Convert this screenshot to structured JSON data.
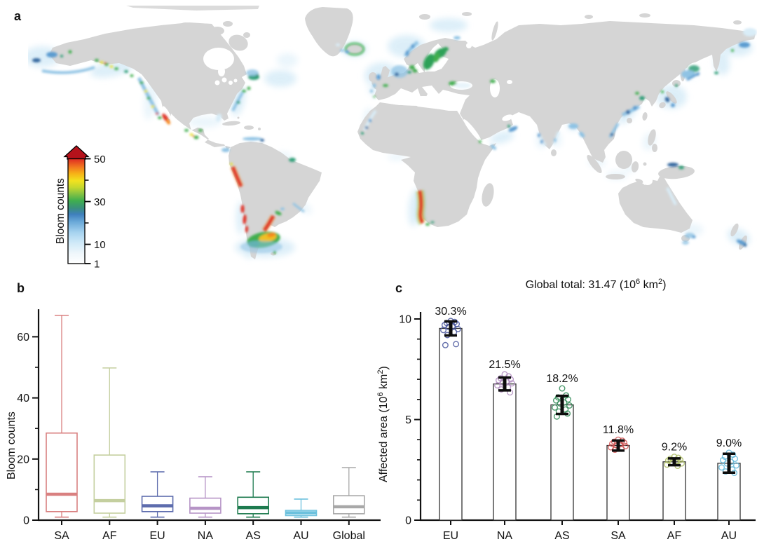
{
  "panels": {
    "a": {
      "label": "a"
    },
    "b": {
      "label": "b"
    },
    "c": {
      "label": "c"
    }
  },
  "map": {
    "land_color": "#d5d5d5",
    "ocean_color": "#ffffff",
    "bloom_palette": [
      "#e8f4fb",
      "#d9edf8",
      "#8fc3e4",
      "#5b9bd0",
      "#35689f",
      "#2f9e77",
      "#3fae4e",
      "#1e7b4f",
      "#e8e337",
      "#f0c020",
      "#f6871f",
      "#e03127"
    ],
    "colorbar": {
      "label": "Bloom counts",
      "min": 1,
      "max": 50,
      "major_ticks": [
        50,
        30,
        10,
        1
      ],
      "minor_ticks": [
        40,
        20
      ],
      "arrow_color": "#b5121b",
      "stops": [
        [
          0,
          "#ffffff"
        ],
        [
          0.1,
          "#eef6fb"
        ],
        [
          0.2,
          "#cfe9f8"
        ],
        [
          0.3,
          "#a5d2ef"
        ],
        [
          0.4,
          "#69a8d8"
        ],
        [
          0.47,
          "#3f7fbd"
        ],
        [
          0.53,
          "#39907c"
        ],
        [
          0.6,
          "#3fae4e"
        ],
        [
          0.67,
          "#8ac441"
        ],
        [
          0.73,
          "#c8d92c"
        ],
        [
          0.79,
          "#f2e21f"
        ],
        [
          0.86,
          "#f6b117"
        ],
        [
          0.92,
          "#f2791f"
        ],
        [
          1,
          "#de2a22"
        ]
      ]
    }
  },
  "chart_data": [
    {
      "type": "box",
      "panel": "b",
      "ylabel": "Bloom counts",
      "ylim": [
        0,
        70
      ],
      "yticks_major": [
        0,
        20,
        40,
        60
      ],
      "yticks_minor": [
        10,
        30,
        50
      ],
      "categories": [
        "SA",
        "AF",
        "EU",
        "NA",
        "AS",
        "AU",
        "Global"
      ],
      "series": [
        {
          "name": "SA",
          "color": "#d98080",
          "low": 1,
          "q1": 2.8,
          "median": 8.5,
          "q3": 28.5,
          "high": 67
        },
        {
          "name": "AF",
          "color": "#c4cf9f",
          "low": 1,
          "q1": 2.3,
          "median": 6.4,
          "q3": 21.3,
          "high": 49.8
        },
        {
          "name": "EU",
          "color": "#5d6cad",
          "low": 1,
          "q1": 2.8,
          "median": 4.7,
          "q3": 7.8,
          "high": 15.8
        },
        {
          "name": "NA",
          "color": "#b694c6",
          "low": 1,
          "q1": 2.3,
          "median": 3.9,
          "q3": 7.2,
          "high": 14.2
        },
        {
          "name": "AS",
          "color": "#1e7b4f",
          "low": 1,
          "q1": 2.1,
          "median": 4.1,
          "q3": 7.5,
          "high": 15.8
        },
        {
          "name": "AU",
          "color": "#6cc1dd",
          "low": 1,
          "q1": 1.5,
          "median": 2.4,
          "q3": 3.2,
          "high": 6.9
        },
        {
          "name": "Global",
          "color": "#a8a8a8",
          "low": 1,
          "q1": 2.1,
          "median": 4.4,
          "q3": 8.0,
          "high": 17.2
        }
      ]
    },
    {
      "type": "bar",
      "panel": "c",
      "global_total": "31.47",
      "title_parts": {
        "t1": "Global total: 31.47 (10",
        "sup1": "6",
        "t2": " km",
        "sup2": "2",
        "t3": ")"
      },
      "ylabel_parts": {
        "t1": "Affected area (10",
        "sup1": "6",
        "t2": " km",
        "sup2": "2",
        "t3": ")"
      },
      "ylim": [
        0,
        10.5
      ],
      "yticks_major": [
        0,
        5,
        10
      ],
      "categories": [
        "EU",
        "NA",
        "AS",
        "SA",
        "AF",
        "AU"
      ],
      "values": [
        9.53,
        6.77,
        5.73,
        3.71,
        2.9,
        2.83
      ],
      "percent_labels": [
        "30.3%",
        "21.5%",
        "18.2%",
        "11.8%",
        "9.2%",
        "9.0%"
      ],
      "errors": [
        0.35,
        0.32,
        0.45,
        0.25,
        0.17,
        0.47
      ],
      "bar_fill": "#ffffff",
      "bar_stroke": "#333333",
      "error_color": "#0d0d0d",
      "point_colors": [
        "#46549b",
        "#b08cc0",
        "#2e8a55",
        "#cf5252",
        "#a9ba62",
        "#5fb6d8"
      ],
      "points": [
        [
          9.9,
          9.85,
          9.8,
          9.75,
          9.7,
          9.65,
          9.6,
          9.5,
          9.45,
          9.35,
          9.2,
          8.75,
          8.7
        ],
        [
          7.25,
          7.15,
          7.05,
          7.0,
          6.95,
          6.9,
          6.85,
          6.8,
          6.7,
          6.6,
          6.5,
          6.35
        ],
        [
          6.55,
          6.2,
          6.1,
          6.0,
          5.95,
          5.85,
          5.8,
          5.7,
          5.6,
          5.5,
          5.4,
          5.3,
          5.15
        ],
        [
          4.0,
          3.95,
          3.9,
          3.85,
          3.8,
          3.78,
          3.72,
          3.68,
          3.62,
          3.55,
          3.5
        ],
        [
          3.15,
          3.1,
          3.05,
          3.0,
          2.97,
          2.92,
          2.88,
          2.82,
          2.76,
          2.7
        ],
        [
          3.35,
          3.25,
          3.15,
          3.05,
          2.98,
          2.9,
          2.82,
          2.72,
          2.62,
          2.52,
          2.42,
          2.35
        ]
      ]
    }
  ]
}
